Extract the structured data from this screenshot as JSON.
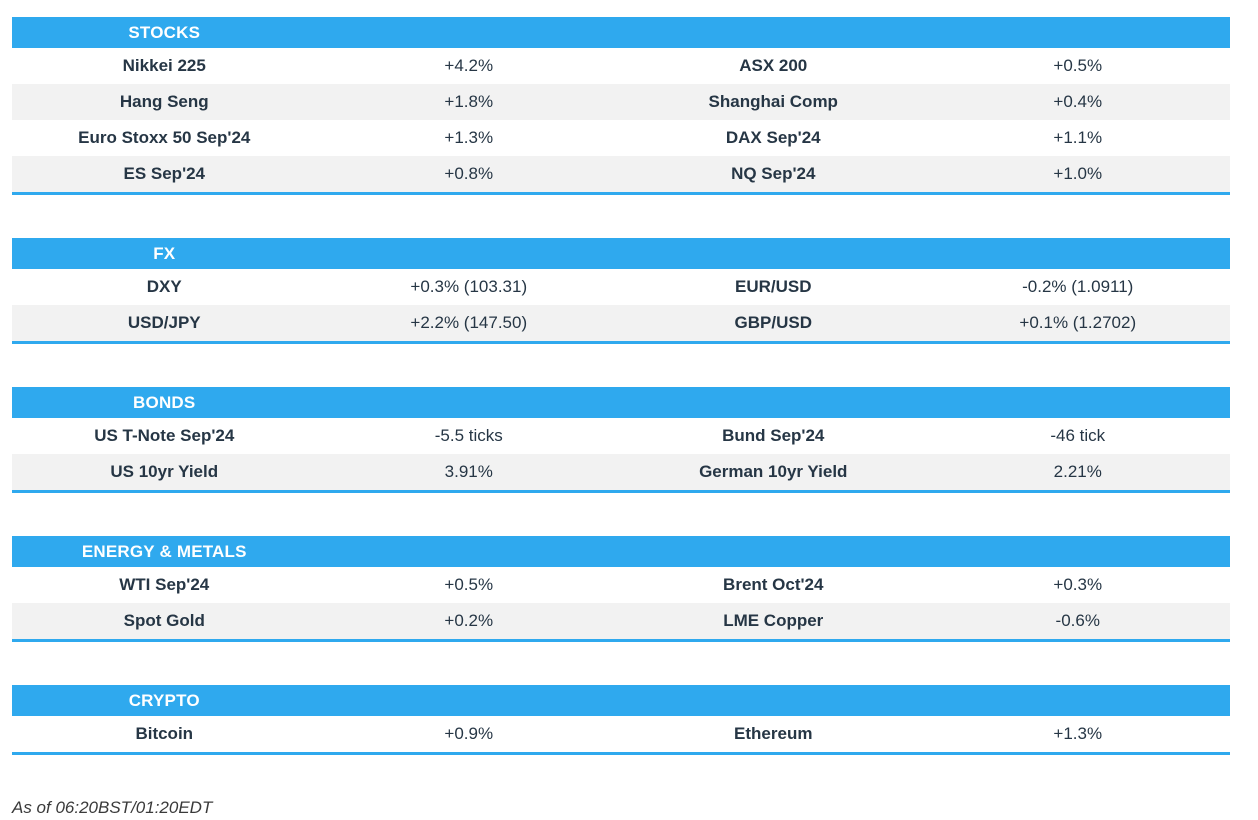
{
  "colors": {
    "accent_blue": "#2FA9EE",
    "row_alt_gray": "#F2F2F2",
    "text_dark": "#263645",
    "header_text": "#FFFFFF"
  },
  "sections": [
    {
      "id": "stocks",
      "title": "STOCKS",
      "rows": [
        [
          "Nikkei 225",
          "+4.2%",
          "ASX 200",
          "+0.5%"
        ],
        [
          "Hang Seng",
          "+1.8%",
          "Shanghai Comp",
          "+0.4%"
        ],
        [
          "Euro Stoxx 50 Sep'24",
          "+1.3%",
          "DAX Sep'24",
          "+1.1%"
        ],
        [
          "ES Sep'24",
          "+0.8%",
          "NQ Sep'24",
          "+1.0%"
        ]
      ]
    },
    {
      "id": "fx",
      "title": "FX",
      "rows": [
        [
          "DXY",
          "+0.3% (103.31)",
          "EUR/USD",
          "-0.2% (1.0911)"
        ],
        [
          "USD/JPY",
          "+2.2% (147.50)",
          "GBP/USD",
          "+0.1% (1.2702)"
        ]
      ]
    },
    {
      "id": "bonds",
      "title": "BONDS",
      "rows": [
        [
          "US T-Note Sep'24",
          "-5.5 ticks",
          "Bund Sep'24",
          "-46 tick"
        ],
        [
          "US 10yr Yield",
          "3.91%",
          "German 10yr Yield",
          "2.21%"
        ]
      ]
    },
    {
      "id": "energy-metals",
      "title": "ENERGY & METALS",
      "rows": [
        [
          "WTI Sep'24",
          "+0.5%",
          "Brent Oct'24",
          "+0.3%"
        ],
        [
          "Spot Gold",
          "+0.2%",
          "LME Copper",
          "-0.6%"
        ]
      ]
    },
    {
      "id": "crypto",
      "title": "CRYPTO",
      "rows": [
        [
          "Bitcoin",
          "+0.9%",
          "Ethereum",
          "+1.3%"
        ]
      ]
    }
  ],
  "footer": {
    "as_of": "As of 06:20BST/01:20EDT"
  }
}
